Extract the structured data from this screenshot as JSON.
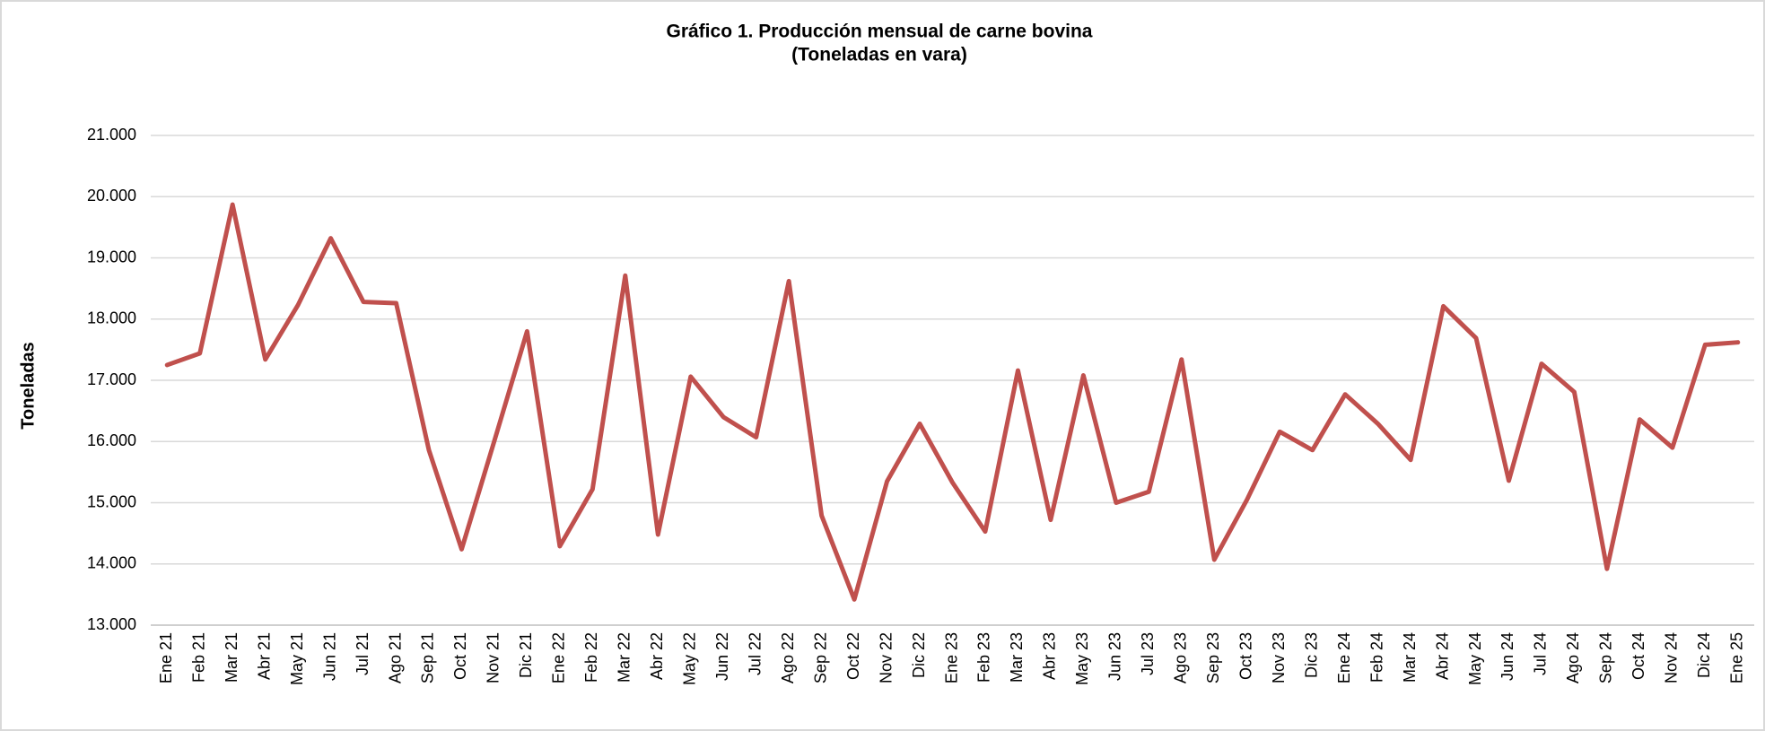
{
  "chart_data": {
    "type": "line",
    "title": "Gráfico 1. Producción mensual de carne bovina",
    "subtitle": "(Toneladas en vara)",
    "y_label": "Toneladas",
    "categories": [
      "Ene 21",
      "Feb 21",
      "Mar 21",
      "Abr 21",
      "May 21",
      "Jun 21",
      "Jul 21",
      "Ago 21",
      "Sep 21",
      "Oct 21",
      "Nov 21",
      "Dic 21",
      "Ene 22",
      "Feb 22",
      "Mar 22",
      "Abr 22",
      "May 22",
      "Jun 22",
      "Jul 22",
      "Ago 22",
      "Sep 22",
      "Oct 22",
      "Nov 22",
      "Dic 22",
      "Ene 23",
      "Feb 23",
      "Mar 23",
      "Abr 23",
      "May 23",
      "Jun 23",
      "Jul 23",
      "Ago 23",
      "Sep 23",
      "Oct 23",
      "Nov 23",
      "Dic 23",
      "Ene 24",
      "Feb 24",
      "Mar 24",
      "Abr 24",
      "May 24",
      "Jun 24",
      "Jul 24",
      "Ago 24",
      "Sep 24",
      "Oct 24",
      "Nov 24",
      "Dic 24",
      "Ene 25"
    ],
    "series": [
      {
        "name": "Toneladas",
        "color": "#c0504d",
        "values": [
          17250,
          17440,
          19870,
          17340,
          18230,
          19320,
          18280,
          18260,
          15860,
          14240,
          16010,
          17800,
          14290,
          15220,
          18710,
          14480,
          17060,
          16400,
          16070,
          18620,
          14790,
          13420,
          15350,
          16290,
          15330,
          14530,
          17160,
          14720,
          17080,
          15000,
          15180,
          17340,
          14070,
          15050,
          16160,
          15860,
          16770,
          16290,
          15700,
          18210,
          17690,
          15360,
          17270,
          16810,
          13920,
          16360,
          15900,
          17580,
          17620
        ]
      }
    ],
    "ylim": [
      13000,
      21000
    ],
    "yticks": [
      {
        "value": 13000,
        "label": "13.000"
      },
      {
        "value": 14000,
        "label": "14.000"
      },
      {
        "value": 15000,
        "label": "15.000"
      },
      {
        "value": 16000,
        "label": "16.000"
      },
      {
        "value": 17000,
        "label": "17.000"
      },
      {
        "value": 18000,
        "label": "18.000"
      },
      {
        "value": 19000,
        "label": "19.000"
      },
      {
        "value": 20000,
        "label": "20.000"
      },
      {
        "value": 21000,
        "label": "21.000"
      }
    ],
    "grid": true
  }
}
